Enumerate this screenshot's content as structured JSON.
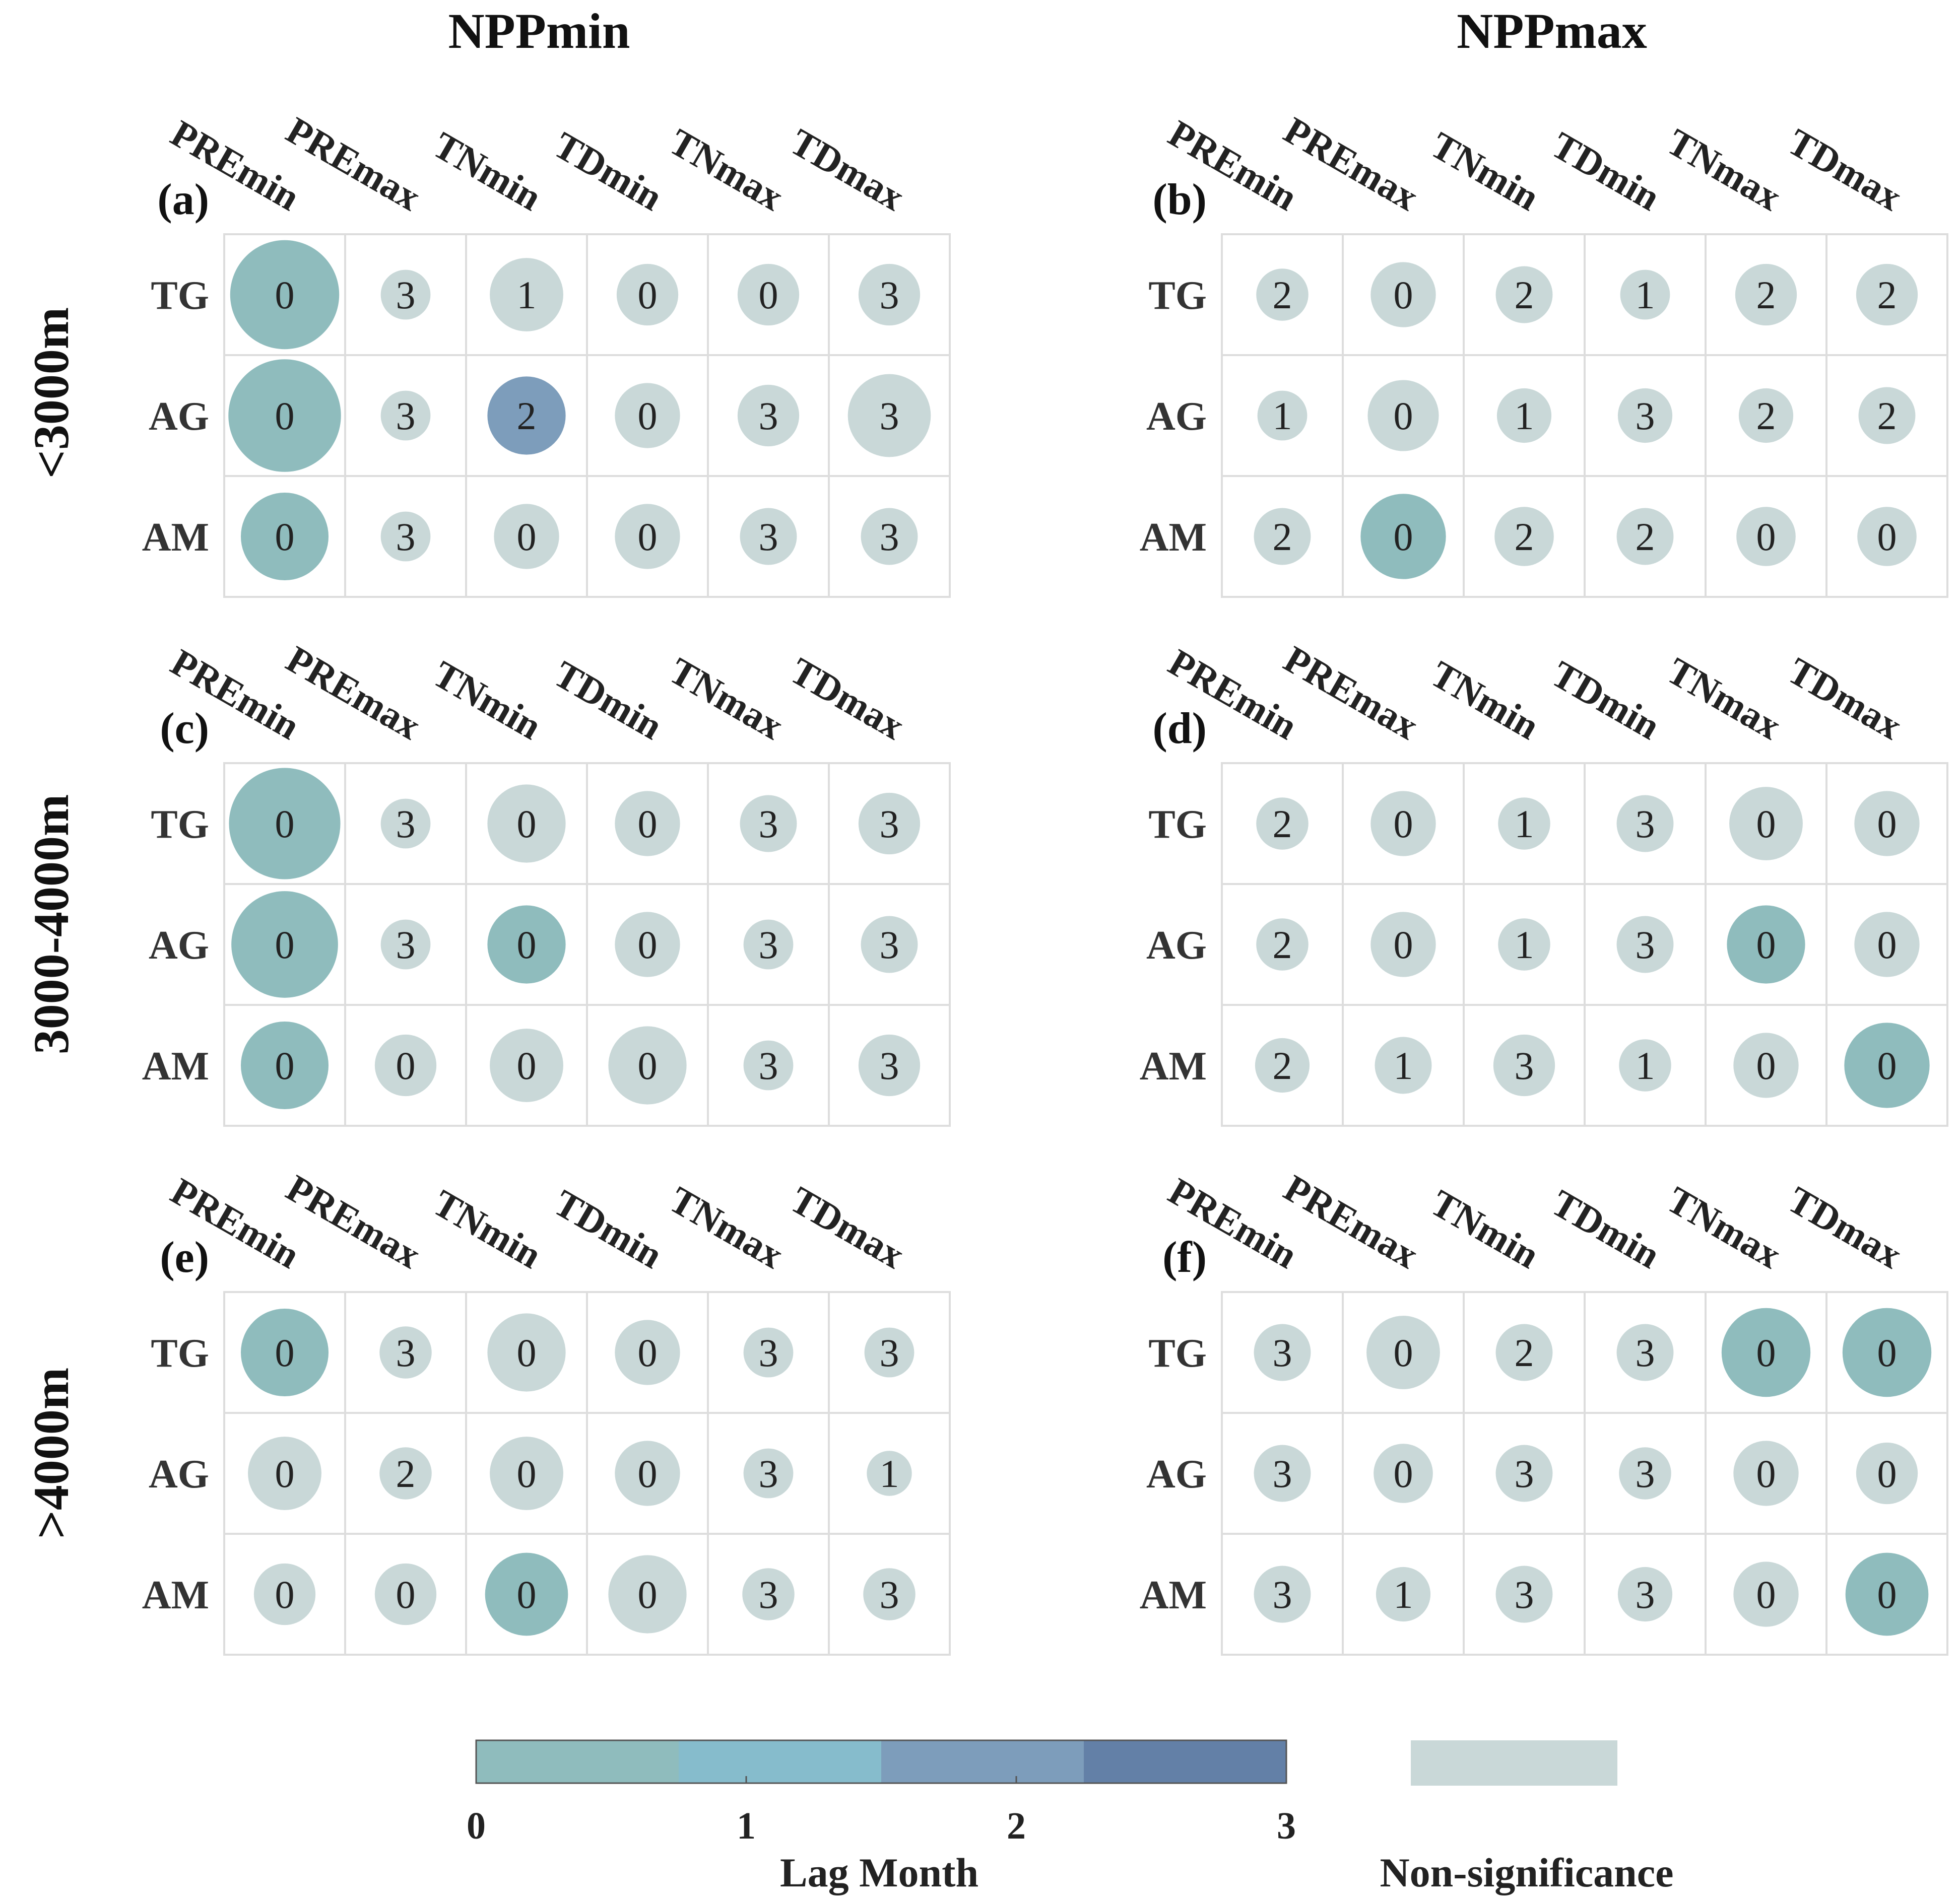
{
  "chart_data": {
    "type": "bubble-matrix",
    "column_titles": [
      "NPPmin",
      "NPPmax"
    ],
    "row_titles": [
      "<3000m",
      "3000-4000m",
      ">4000m"
    ],
    "variables": [
      "PREmin",
      "PREmax",
      "TNmin",
      "TDmin",
      "TNmax",
      "TDmax"
    ],
    "categories": [
      "TG",
      "AG",
      "AM"
    ],
    "colors": {
      "lag0": "#8fbcbd",
      "lag1": "#86bccc",
      "lag2": "#7d9dbb",
      "lag3": "#6380a7",
      "non_significance": "#c9d8d8",
      "grid": "#dddddd"
    },
    "panels": [
      {
        "label": "(a)",
        "npp": "NPPmin",
        "elevation": "<3000m",
        "lag": [
          [
            0,
            3,
            1,
            0,
            0,
            3
          ],
          [
            0,
            3,
            2,
            0,
            3,
            3
          ],
          [
            0,
            3,
            0,
            0,
            3,
            3
          ]
        ],
        "significant": [
          [
            true,
            false,
            false,
            false,
            false,
            false
          ],
          [
            true,
            false,
            true,
            false,
            false,
            false
          ],
          [
            true,
            false,
            false,
            false,
            false,
            false
          ]
        ],
        "size": [
          [
            0.92,
            0.42,
            0.62,
            0.52,
            0.52,
            0.52
          ],
          [
            0.95,
            0.42,
            0.66,
            0.55,
            0.52,
            0.7
          ],
          [
            0.74,
            0.42,
            0.55,
            0.55,
            0.48,
            0.48
          ]
        ]
      },
      {
        "label": "(b)",
        "npp": "NPPmax",
        "elevation": "<3000m",
        "lag": [
          [
            2,
            0,
            2,
            1,
            2,
            2
          ],
          [
            1,
            0,
            1,
            3,
            2,
            2
          ],
          [
            2,
            0,
            2,
            2,
            0,
            0
          ]
        ],
        "significant": [
          [
            false,
            false,
            false,
            false,
            false,
            false
          ],
          [
            false,
            false,
            false,
            false,
            false,
            false
          ],
          [
            false,
            true,
            false,
            false,
            false,
            false
          ]
        ],
        "size": [
          [
            0.44,
            0.55,
            0.48,
            0.42,
            0.52,
            0.52
          ],
          [
            0.42,
            0.6,
            0.46,
            0.46,
            0.46,
            0.48
          ],
          [
            0.48,
            0.72,
            0.5,
            0.48,
            0.5,
            0.5
          ]
        ]
      },
      {
        "label": "(c)",
        "npp": "NPPmin",
        "elevation": "3000-4000m",
        "lag": [
          [
            0,
            3,
            0,
            0,
            3,
            3
          ],
          [
            0,
            3,
            0,
            0,
            3,
            3
          ],
          [
            0,
            0,
            0,
            0,
            3,
            3
          ]
        ],
        "significant": [
          [
            true,
            false,
            false,
            false,
            false,
            false
          ],
          [
            true,
            false,
            true,
            false,
            false,
            false
          ],
          [
            true,
            false,
            false,
            false,
            false,
            false
          ]
        ],
        "size": [
          [
            0.94,
            0.42,
            0.66,
            0.55,
            0.48,
            0.52
          ],
          [
            0.9,
            0.42,
            0.66,
            0.55,
            0.42,
            0.48
          ],
          [
            0.74,
            0.52,
            0.62,
            0.66,
            0.42,
            0.52
          ]
        ]
      },
      {
        "label": "(d)",
        "npp": "NPPmax",
        "elevation": "3000-4000m",
        "lag": [
          [
            2,
            0,
            1,
            3,
            0,
            0
          ],
          [
            2,
            0,
            1,
            3,
            0,
            0
          ],
          [
            2,
            1,
            3,
            1,
            0,
            0
          ]
        ],
        "significant": [
          [
            false,
            false,
            false,
            false,
            false,
            false
          ],
          [
            false,
            false,
            false,
            false,
            true,
            false
          ],
          [
            false,
            false,
            false,
            false,
            false,
            true
          ]
        ],
        "size": [
          [
            0.44,
            0.55,
            0.44,
            0.48,
            0.62,
            0.55
          ],
          [
            0.44,
            0.55,
            0.44,
            0.48,
            0.66,
            0.55
          ],
          [
            0.46,
            0.48,
            0.52,
            0.44,
            0.55,
            0.72
          ]
        ]
      },
      {
        "label": "(e)",
        "npp": "NPPmin",
        "elevation": ">4000m",
        "lag": [
          [
            0,
            3,
            0,
            0,
            3,
            3
          ],
          [
            0,
            2,
            0,
            0,
            3,
            1
          ],
          [
            0,
            0,
            0,
            0,
            3,
            3
          ]
        ],
        "significant": [
          [
            true,
            false,
            false,
            false,
            false,
            false
          ],
          [
            false,
            false,
            false,
            false,
            false,
            false
          ],
          [
            false,
            false,
            true,
            false,
            false,
            false
          ]
        ],
        "size": [
          [
            0.74,
            0.44,
            0.66,
            0.55,
            0.42,
            0.42
          ],
          [
            0.62,
            0.44,
            0.62,
            0.55,
            0.42,
            0.38
          ],
          [
            0.52,
            0.52,
            0.7,
            0.66,
            0.44,
            0.44
          ]
        ]
      },
      {
        "label": "(f)",
        "npp": "NPPmax",
        "elevation": ">4000m",
        "lag": [
          [
            3,
            0,
            2,
            3,
            0,
            0
          ],
          [
            3,
            0,
            3,
            3,
            0,
            0
          ],
          [
            3,
            1,
            3,
            3,
            0,
            0
          ]
        ],
        "significant": [
          [
            false,
            false,
            false,
            false,
            true,
            true
          ],
          [
            false,
            false,
            false,
            false,
            false,
            false
          ],
          [
            false,
            false,
            false,
            false,
            false,
            true
          ]
        ],
        "size": [
          [
            0.48,
            0.62,
            0.48,
            0.48,
            0.75,
            0.75
          ],
          [
            0.48,
            0.5,
            0.48,
            0.44,
            0.55,
            0.52
          ],
          [
            0.48,
            0.46,
            0.48,
            0.46,
            0.55,
            0.7
          ]
        ]
      }
    ],
    "legend": {
      "title": "Lag Month",
      "ticks": [
        "0",
        "1",
        "2",
        "3"
      ],
      "non_significance_label": "Non-significance"
    }
  }
}
